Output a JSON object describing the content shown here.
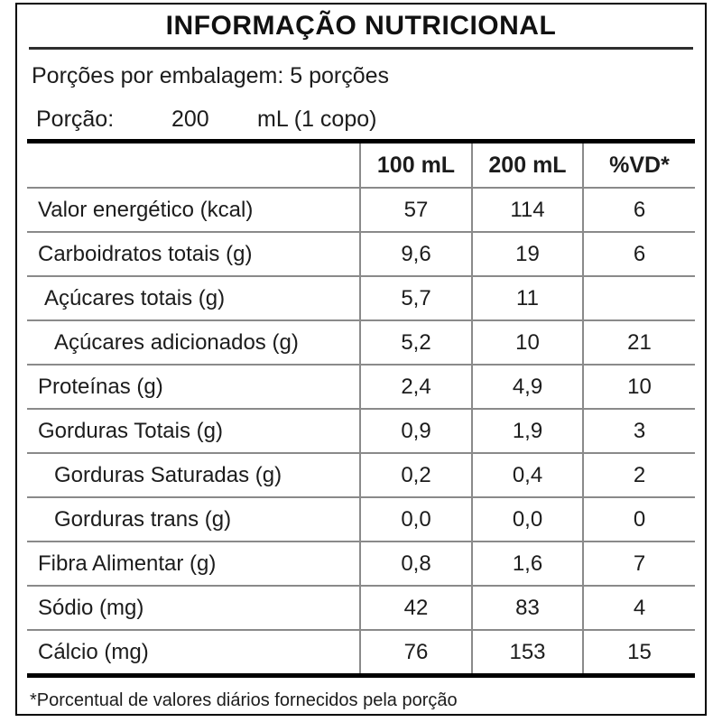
{
  "title": "INFORMAÇÃO NUTRICIONAL",
  "servings_line": "Porções por embalagem: 5 porções",
  "portion": {
    "label": "Porção:",
    "value": "200",
    "unit": "mL (1 copo)"
  },
  "table": {
    "headers": [
      "",
      "100 mL",
      "200 mL",
      "%VD*"
    ],
    "rows": [
      {
        "label": "Valor energético (kcal)",
        "per_100ml": "57",
        "per_200ml": "114",
        "pct_vd": "6"
      },
      {
        "label": "Carboidratos totais (g)",
        "per_100ml": "9,6",
        "per_200ml": "19",
        "pct_vd": "6"
      },
      {
        "label": "Açúcares totais (g)",
        "per_100ml": "5,7",
        "per_200ml": "11",
        "pct_vd": ""
      },
      {
        "label": "Açúcares adicionados (g)",
        "per_100ml": "5,2",
        "per_200ml": "10",
        "pct_vd": "21"
      },
      {
        "label": "Proteínas (g)",
        "per_100ml": "2,4",
        "per_200ml": "4,9",
        "pct_vd": "10"
      },
      {
        "label": "Gorduras Totais (g)",
        "per_100ml": "0,9",
        "per_200ml": "1,9",
        "pct_vd": "3"
      },
      {
        "label": "Gorduras Saturadas (g)",
        "per_100ml": "0,2",
        "per_200ml": "0,4",
        "pct_vd": "2"
      },
      {
        "label": "Gorduras trans (g)",
        "per_100ml": "0,0",
        "per_200ml": "0,0",
        "pct_vd": "0"
      },
      {
        "label": "Fibra Alimentar (g)",
        "per_100ml": "0,8",
        "per_200ml": "1,6",
        "pct_vd": "7"
      },
      {
        "label": "Sódio (mg)",
        "per_100ml": "42",
        "per_200ml": "83",
        "pct_vd": "4"
      },
      {
        "label": "Cálcio (mg)",
        "per_100ml": "76",
        "per_200ml": "153",
        "pct_vd": "15"
      }
    ]
  },
  "footnote": "*Porcentual de valores diários fornecidos pela porção",
  "colors": {
    "text": "#1c1c1c",
    "grid_line": "#8a8a8a",
    "heavy_line": "#000000",
    "background": "#ffffff"
  }
}
